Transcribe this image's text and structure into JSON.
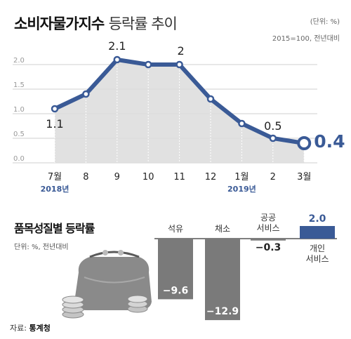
{
  "header": {
    "title_main": "소비자물가지수",
    "title_sub": "등락률 추이",
    "unit": "(단위: %)",
    "base": "2015=100, 전년대비"
  },
  "colors": {
    "line": "#3a5a96",
    "area": "#dcdcdc",
    "bar_negative": "#7a7a7a",
    "bar_positive": "#3a5a96",
    "highlight_label": "#3a5a96"
  },
  "chart_data": [
    {
      "type": "line",
      "title": "소비자물가지수 등락률 추이",
      "x": [
        "7월",
        "8",
        "9",
        "10",
        "11",
        "12",
        "1월",
        "2",
        "3월"
      ],
      "year_labels": [
        "2018년",
        "2019년"
      ],
      "series": [
        {
          "values": [
            1.1,
            1.4,
            2.1,
            2.0,
            2.0,
            1.3,
            0.8,
            0.5,
            0.4
          ]
        }
      ],
      "data_labels": [
        "1.1",
        "",
        "2.1",
        "",
        "2",
        "",
        "",
        "0.5",
        "0.4"
      ],
      "yticks": [
        "0.0",
        "0.5",
        "1.0",
        "1.5",
        "2.0"
      ],
      "ylim": [
        0,
        2.3
      ],
      "grid": true
    },
    {
      "type": "bar",
      "title": "품목성질별 등락률",
      "unit": "단위: %, 전년대비",
      "categories": [
        "석유",
        "채소",
        "공공\n서비스",
        "개인\n서비스"
      ],
      "values": [
        -9.6,
        -12.9,
        -0.3,
        2.0
      ],
      "data_labels": [
        "−9.6",
        "−12.9",
        "−0.3",
        "2.0"
      ]
    }
  ],
  "bar_section": {
    "title": "품목성질별 등락률",
    "unit": "단위: %, 전년대비"
  },
  "footer": {
    "source_label": "자료:",
    "source_name": "통계청"
  }
}
